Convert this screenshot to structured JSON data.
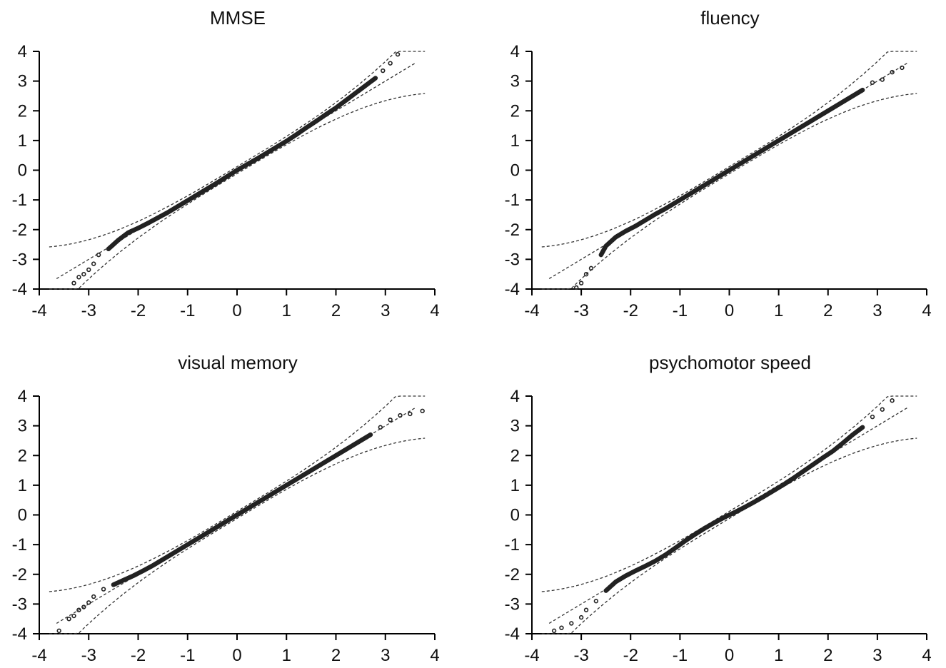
{
  "chart_data": [
    {
      "type": "scatter",
      "title": "MMSE",
      "xlim": [
        -4,
        4
      ],
      "ylim": [
        -4,
        4
      ],
      "x_ticks": [
        "-4",
        "-3",
        "-2",
        "-1",
        "0",
        "1",
        "2",
        "3",
        "4"
      ],
      "y_ticks": [
        "4",
        "3",
        "2",
        "1",
        "0",
        "-1",
        "-2",
        "-3",
        "-4"
      ],
      "grid": false,
      "reference_line": {
        "intercept": 0,
        "slope": 1
      },
      "confidence_band": true,
      "points": [
        [
          -3.3,
          -3.8
        ],
        [
          -3.2,
          -3.6
        ],
        [
          -3.1,
          -3.5
        ],
        [
          -3.0,
          -3.35
        ],
        [
          -2.9,
          -3.15
        ],
        [
          -2.8,
          -2.85
        ],
        [
          -2.6,
          -2.65
        ],
        [
          -2.4,
          -2.35
        ],
        [
          -2.2,
          -2.1
        ],
        [
          -2.0,
          -1.95
        ],
        [
          -1.8,
          -1.78
        ],
        [
          -1.6,
          -1.6
        ],
        [
          -1.4,
          -1.42
        ],
        [
          -1.2,
          -1.22
        ],
        [
          -1.0,
          -1.02
        ],
        [
          -0.8,
          -0.82
        ],
        [
          -0.6,
          -0.62
        ],
        [
          -0.4,
          -0.42
        ],
        [
          -0.2,
          -0.21
        ],
        [
          0.0,
          0.0
        ],
        [
          0.2,
          0.19
        ],
        [
          0.4,
          0.38
        ],
        [
          0.6,
          0.58
        ],
        [
          0.8,
          0.78
        ],
        [
          1.0,
          0.98
        ],
        [
          1.2,
          1.2
        ],
        [
          1.4,
          1.43
        ],
        [
          1.6,
          1.65
        ],
        [
          1.8,
          1.88
        ],
        [
          2.0,
          2.1
        ],
        [
          2.2,
          2.35
        ],
        [
          2.4,
          2.6
        ],
        [
          2.6,
          2.85
        ],
        [
          2.8,
          3.1
        ],
        [
          2.95,
          3.35
        ],
        [
          3.1,
          3.6
        ],
        [
          3.25,
          3.9
        ]
      ]
    },
    {
      "type": "scatter",
      "title": "fluency",
      "xlim": [
        -4,
        4
      ],
      "ylim": [
        -4,
        4
      ],
      "x_ticks": [
        "-4",
        "-3",
        "-2",
        "-1",
        "0",
        "1",
        "2",
        "3",
        "4"
      ],
      "y_ticks": [
        "4",
        "3",
        "2",
        "1",
        "0",
        "-1",
        "-2",
        "-3",
        "-4"
      ],
      "grid": false,
      "reference_line": {
        "intercept": 0,
        "slope": 1
      },
      "confidence_band": true,
      "points": [
        [
          -3.1,
          -3.95
        ],
        [
          -3.0,
          -3.8
        ],
        [
          -2.9,
          -3.5
        ],
        [
          -2.8,
          -3.3
        ],
        [
          -2.6,
          -2.85
        ],
        [
          -2.5,
          -2.55
        ],
        [
          -2.3,
          -2.25
        ],
        [
          -2.1,
          -2.05
        ],
        [
          -1.9,
          -1.88
        ],
        [
          -1.7,
          -1.68
        ],
        [
          -1.5,
          -1.48
        ],
        [
          -1.3,
          -1.3
        ],
        [
          -1.1,
          -1.1
        ],
        [
          -0.9,
          -0.9
        ],
        [
          -0.7,
          -0.7
        ],
        [
          -0.5,
          -0.5
        ],
        [
          -0.3,
          -0.3
        ],
        [
          -0.1,
          -0.1
        ],
        [
          0.1,
          0.1
        ],
        [
          0.3,
          0.3
        ],
        [
          0.5,
          0.5
        ],
        [
          0.7,
          0.7
        ],
        [
          0.9,
          0.9
        ],
        [
          1.1,
          1.1
        ],
        [
          1.3,
          1.3
        ],
        [
          1.5,
          1.5
        ],
        [
          1.7,
          1.7
        ],
        [
          1.9,
          1.9
        ],
        [
          2.1,
          2.1
        ],
        [
          2.3,
          2.3
        ],
        [
          2.5,
          2.5
        ],
        [
          2.7,
          2.7
        ],
        [
          2.9,
          2.95
        ],
        [
          3.1,
          3.05
        ],
        [
          3.3,
          3.3
        ],
        [
          3.5,
          3.45
        ]
      ]
    },
    {
      "type": "scatter",
      "title": "visual memory",
      "xlim": [
        -4,
        4
      ],
      "ylim": [
        -4,
        4
      ],
      "x_ticks": [
        "-4",
        "-3",
        "-2",
        "-1",
        "0",
        "1",
        "2",
        "3",
        "4"
      ],
      "y_ticks": [
        "4",
        "3",
        "2",
        "1",
        "0",
        "-1",
        "-2",
        "-3",
        "-4"
      ],
      "grid": false,
      "reference_line": {
        "intercept": 0,
        "slope": 1
      },
      "confidence_band": true,
      "points": [
        [
          -3.6,
          -3.9
        ],
        [
          -3.4,
          -3.5
        ],
        [
          -3.3,
          -3.4
        ],
        [
          -3.2,
          -3.2
        ],
        [
          -3.1,
          -3.1
        ],
        [
          -3.0,
          -2.95
        ],
        [
          -2.9,
          -2.75
        ],
        [
          -2.7,
          -2.5
        ],
        [
          -2.5,
          -2.35
        ],
        [
          -2.3,
          -2.2
        ],
        [
          -2.1,
          -2.05
        ],
        [
          -1.9,
          -1.88
        ],
        [
          -1.7,
          -1.7
        ],
        [
          -1.5,
          -1.5
        ],
        [
          -1.3,
          -1.3
        ],
        [
          -1.1,
          -1.1
        ],
        [
          -0.9,
          -0.9
        ],
        [
          -0.7,
          -0.7
        ],
        [
          -0.5,
          -0.5
        ],
        [
          -0.3,
          -0.3
        ],
        [
          -0.1,
          -0.1
        ],
        [
          0.1,
          0.1
        ],
        [
          0.3,
          0.3
        ],
        [
          0.5,
          0.5
        ],
        [
          0.7,
          0.7
        ],
        [
          0.9,
          0.9
        ],
        [
          1.1,
          1.1
        ],
        [
          1.3,
          1.3
        ],
        [
          1.5,
          1.5
        ],
        [
          1.7,
          1.7
        ],
        [
          1.9,
          1.9
        ],
        [
          2.1,
          2.1
        ],
        [
          2.3,
          2.3
        ],
        [
          2.5,
          2.5
        ],
        [
          2.7,
          2.7
        ],
        [
          2.9,
          2.95
        ],
        [
          3.1,
          3.2
        ],
        [
          3.3,
          3.35
        ],
        [
          3.5,
          3.4
        ],
        [
          3.75,
          3.5
        ]
      ]
    },
    {
      "type": "scatter",
      "title": "psychomotor speed",
      "xlim": [
        -4,
        4
      ],
      "ylim": [
        -4,
        4
      ],
      "x_ticks": [
        "-4",
        "-3",
        "-2",
        "-1",
        "0",
        "1",
        "2",
        "3",
        "4"
      ],
      "y_ticks": [
        "4",
        "3",
        "2",
        "1",
        "0",
        "-1",
        "-2",
        "-3",
        "-4"
      ],
      "grid": false,
      "reference_line": {
        "intercept": 0,
        "slope": 1
      },
      "confidence_band": true,
      "points": [
        [
          -3.55,
          -3.9
        ],
        [
          -3.4,
          -3.8
        ],
        [
          -3.2,
          -3.65
        ],
        [
          -3.0,
          -3.45
        ],
        [
          -2.9,
          -3.2
        ],
        [
          -2.7,
          -2.9
        ],
        [
          -2.5,
          -2.55
        ],
        [
          -2.3,
          -2.25
        ],
        [
          -2.1,
          -2.05
        ],
        [
          -1.9,
          -1.88
        ],
        [
          -1.7,
          -1.72
        ],
        [
          -1.5,
          -1.55
        ],
        [
          -1.3,
          -1.35
        ],
        [
          -1.1,
          -1.12
        ],
        [
          -0.9,
          -0.88
        ],
        [
          -0.7,
          -0.66
        ],
        [
          -0.5,
          -0.45
        ],
        [
          -0.3,
          -0.26
        ],
        [
          -0.1,
          -0.08
        ],
        [
          0.1,
          0.08
        ],
        [
          0.3,
          0.25
        ],
        [
          0.5,
          0.43
        ],
        [
          0.7,
          0.62
        ],
        [
          0.9,
          0.82
        ],
        [
          1.1,
          1.02
        ],
        [
          1.3,
          1.24
        ],
        [
          1.5,
          1.47
        ],
        [
          1.7,
          1.7
        ],
        [
          1.9,
          1.93
        ],
        [
          2.1,
          2.15
        ],
        [
          2.3,
          2.42
        ],
        [
          2.5,
          2.7
        ],
        [
          2.7,
          2.95
        ],
        [
          2.9,
          3.3
        ],
        [
          3.1,
          3.55
        ],
        [
          3.3,
          3.85
        ]
      ]
    }
  ]
}
